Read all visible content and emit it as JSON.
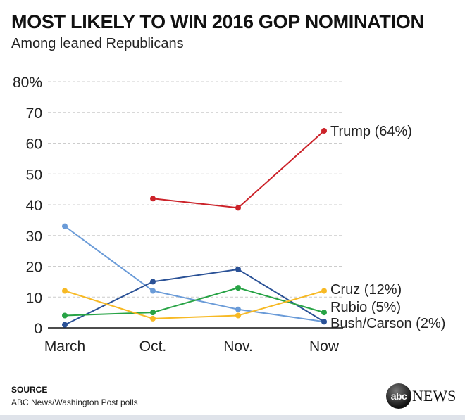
{
  "header": {
    "title": "MOST LIKELY TO WIN 2016 GOP NOMINATION",
    "subtitle": "Among leaned Republicans"
  },
  "footer": {
    "source_heading": "SOURCE",
    "source": "ABC News/Washington Post polls",
    "logo": "abc NEWS",
    "logo_ball": "abc",
    "logo_word": "NEWS"
  },
  "chart_data": {
    "type": "line",
    "title": "MOST LIKELY TO WIN 2016 GOP NOMINATION",
    "subtitle": "Among leaned Republicans",
    "categories": [
      "March",
      "Oct.",
      "Nov.",
      "Now"
    ],
    "yticks": [
      "0",
      "10",
      "20",
      "30",
      "40",
      "50",
      "60",
      "70",
      "80%"
    ],
    "ylim": [
      0,
      80
    ],
    "grid": true,
    "series": [
      {
        "name": "Trump",
        "label": "Trump (64%)",
        "color": "#cc2229",
        "values": [
          null,
          42,
          39,
          64
        ]
      },
      {
        "name": "Bush",
        "label": "",
        "color": "#6a9bd8",
        "values": [
          33,
          12,
          6,
          2
        ]
      },
      {
        "name": "Carson",
        "label": "Bush/Carson (2%)",
        "color": "#2a5196",
        "values": [
          1,
          15,
          19,
          2
        ]
      },
      {
        "name": "Rubio",
        "label": "Rubio (5%)",
        "color": "#27a345",
        "values": [
          4,
          5,
          13,
          5
        ]
      },
      {
        "name": "Cruz",
        "label": "Cruz (12%)",
        "color": "#f7b924",
        "values": [
          12,
          3,
          4,
          12
        ]
      }
    ]
  }
}
